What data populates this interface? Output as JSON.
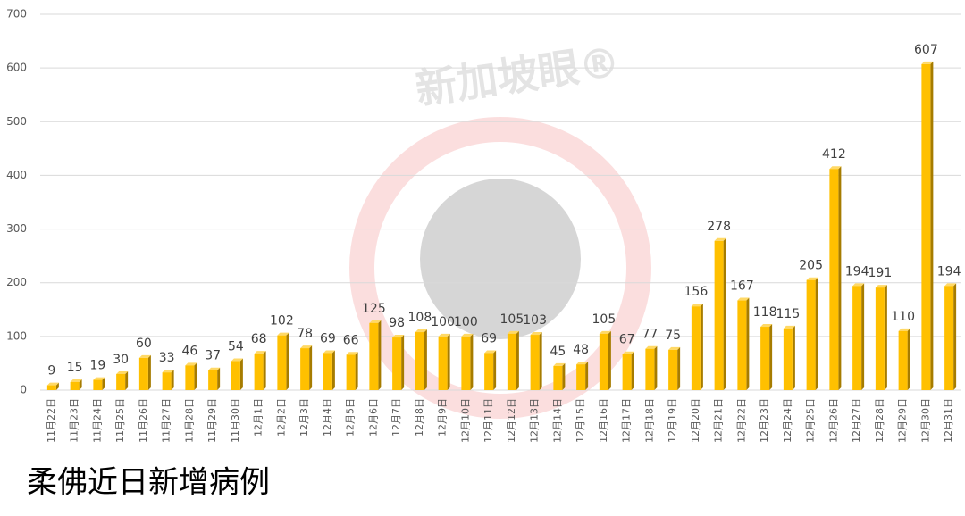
{
  "chart_data": {
    "type": "bar",
    "title": "柔佛近日新增病例",
    "watermark": "新加坡眼®",
    "categories": [
      "11月22日",
      "11月23日",
      "11月24日",
      "11月25日",
      "11月26日",
      "11月27日",
      "11月28日",
      "11月29日",
      "11月30日",
      "12月1日",
      "12月2日",
      "12月3日",
      "12月4日",
      "12月5日",
      "12月6日",
      "12月7日",
      "12月8日",
      "12月9日",
      "12月10日",
      "12月11日",
      "12月12日",
      "12月13日",
      "12月14日",
      "12月15日",
      "12月16日",
      "12月17日",
      "12月18日",
      "12月19日",
      "12月20日",
      "12月21日",
      "12月22日",
      "12月23日",
      "12月24日",
      "12月25日",
      "12月26日",
      "12月27日",
      "12月28日",
      "12月29日",
      "12月30日",
      "12月31日"
    ],
    "values": [
      9,
      15,
      19,
      30,
      60,
      33,
      46,
      37,
      54,
      68,
      102,
      78,
      69,
      66,
      125,
      98,
      108,
      100,
      100,
      69,
      105,
      103,
      45,
      48,
      105,
      67,
      77,
      75,
      156,
      278,
      167,
      118,
      115,
      205,
      412,
      194,
      191,
      110,
      607,
      194
    ],
    "color": "#ffc000",
    "ylim": [
      0,
      700
    ],
    "yticks": [
      0,
      100,
      200,
      300,
      400,
      500,
      600,
      700
    ],
    "grid": true
  }
}
